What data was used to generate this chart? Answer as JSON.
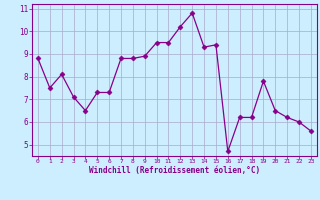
{
  "x": [
    0,
    1,
    2,
    3,
    4,
    5,
    6,
    7,
    8,
    9,
    10,
    11,
    12,
    13,
    14,
    15,
    16,
    17,
    18,
    19,
    20,
    21,
    22,
    23
  ],
  "y": [
    8.8,
    7.5,
    8.1,
    7.1,
    6.5,
    7.3,
    7.3,
    8.8,
    8.8,
    8.9,
    9.5,
    9.5,
    10.2,
    10.8,
    9.3,
    9.4,
    4.7,
    6.2,
    6.2,
    7.8,
    6.5,
    6.2,
    6.0,
    5.6
  ],
  "line_color": "#880088",
  "marker": "D",
  "marker_size": 2.5,
  "bg_color": "#cceeff",
  "grid_color": "#aaaacc",
  "axis_label_color": "#880088",
  "tick_color": "#880088",
  "spine_color": "#880088",
  "xlim": [
    -0.5,
    23.5
  ],
  "ylim": [
    4.5,
    11.2
  ],
  "yticks": [
    5,
    6,
    7,
    8,
    9,
    10,
    11
  ],
  "xticks": [
    0,
    1,
    2,
    3,
    4,
    5,
    6,
    7,
    8,
    9,
    10,
    11,
    12,
    13,
    14,
    15,
    16,
    17,
    18,
    19,
    20,
    21,
    22,
    23
  ],
  "xlabel": "Windchill (Refroidissement éolien,°C)",
  "title": ""
}
